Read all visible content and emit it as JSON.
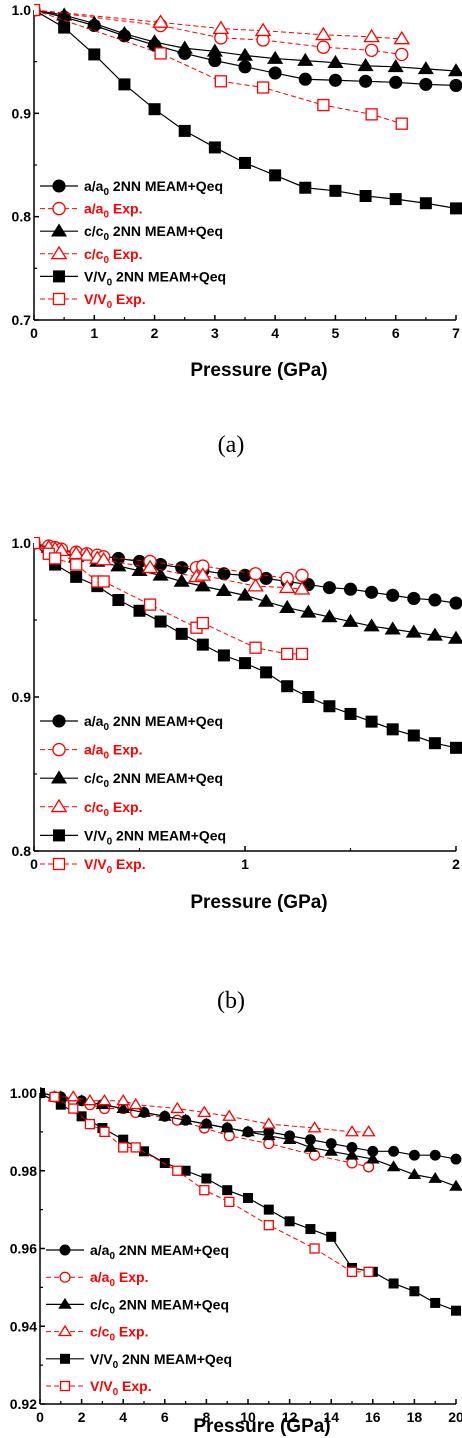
{
  "colors": {
    "sim": "#000000",
    "exp": "#ff0000"
  },
  "panel_captions": [
    "(a)",
    "(b)"
  ],
  "chart_data": [
    {
      "type": "line",
      "xlabel": "Pressure (GPa)",
      "ylabel": "",
      "xlim": [
        0,
        7
      ],
      "ylim": [
        0.7,
        1.0
      ],
      "xticks": [
        "0",
        "1",
        "2",
        "3",
        "4",
        "5",
        "6",
        "7"
      ],
      "yticks": [
        "0.7",
        "0.8",
        "0.9",
        "1.0"
      ],
      "legend_position": "bottom-left",
      "series": [
        {
          "name": "a/a0 2NN MEAM+Qeq",
          "label_main": "a/a",
          "label_sub": "0",
          "label_rest": " 2NN MEAM+Qeq",
          "kind": "sim",
          "marker": "circle",
          "x": [
            0,
            0.5,
            1,
            1.5,
            2,
            2.5,
            3,
            3.5,
            4,
            4.5,
            5,
            5.5,
            6,
            6.5,
            7
          ],
          "y": [
            1.0,
            0.993,
            0.985,
            0.975,
            0.966,
            0.958,
            0.951,
            0.945,
            0.939,
            0.933,
            0.932,
            0.931,
            0.93,
            0.928,
            0.927
          ]
        },
        {
          "name": "a/a0 Exp.",
          "label_main": "a/a",
          "label_sub": "0",
          "label_rest": " Exp.",
          "kind": "exp",
          "marker": "circle",
          "x": [
            0,
            2.1,
            3.1,
            3.8,
            4.8,
            5.6,
            6.1
          ],
          "y": [
            1.0,
            0.985,
            0.973,
            0.971,
            0.964,
            0.961,
            0.957
          ]
        },
        {
          "name": "c/c0 2NN MEAM+Qeq",
          "label_main": "c/c",
          "label_sub": "0",
          "label_rest": " 2NN MEAM+Qeq",
          "kind": "sim",
          "marker": "triangle",
          "x": [
            0,
            0.5,
            1,
            1.5,
            2,
            2.5,
            3,
            3.5,
            4,
            4.5,
            5,
            5.5,
            6,
            6.5,
            7
          ],
          "y": [
            1.0,
            0.995,
            0.987,
            0.977,
            0.969,
            0.963,
            0.96,
            0.956,
            0.953,
            0.951,
            0.949,
            0.946,
            0.945,
            0.943,
            0.941
          ]
        },
        {
          "name": "c/c0 Exp.",
          "label_main": "c/c",
          "label_sub": "0",
          "label_rest": " Exp.",
          "kind": "exp",
          "marker": "triangle",
          "x": [
            0,
            2.1,
            3.1,
            3.8,
            4.8,
            5.6,
            6.1
          ],
          "y": [
            1.0,
            0.988,
            0.982,
            0.98,
            0.976,
            0.974,
            0.972
          ]
        },
        {
          "name": "V/V0 2NN MEAM+Qeq",
          "label_main": "V/V",
          "label_sub": "0",
          "label_rest": " 2NN MEAM+Qeq",
          "kind": "sim",
          "marker": "square",
          "x": [
            0,
            0.5,
            1,
            1.5,
            2,
            2.5,
            3,
            3.5,
            4,
            4.5,
            5,
            5.5,
            6,
            6.5,
            7
          ],
          "y": [
            1.0,
            0.983,
            0.957,
            0.928,
            0.904,
            0.883,
            0.867,
            0.852,
            0.84,
            0.828,
            0.825,
            0.82,
            0.817,
            0.813,
            0.808
          ]
        },
        {
          "name": "V/V0 Exp.",
          "label_main": "V/V",
          "label_sub": "0",
          "label_rest": " Exp.",
          "kind": "exp",
          "marker": "square",
          "x": [
            0,
            2.1,
            3.1,
            3.8,
            4.8,
            5.6,
            6.1
          ],
          "y": [
            1.0,
            0.958,
            0.931,
            0.925,
            0.908,
            0.899,
            0.89
          ]
        }
      ]
    },
    {
      "type": "line",
      "xlabel": "Pressure (GPa)",
      "ylabel": "",
      "xlim": [
        0,
        2
      ],
      "ylim": [
        0.8,
        1.0
      ],
      "xticks": [
        "0",
        "1",
        "2"
      ],
      "yticks": [
        "0.8",
        "0.9",
        "1.0"
      ],
      "legend_position": "bottom-left",
      "series": [
        {
          "name": "a/a0 2NN MEAM+Qeq",
          "label_main": "a/a",
          "label_sub": "0",
          "label_rest": " 2NN MEAM+Qeq",
          "kind": "sim",
          "marker": "circle",
          "x": [
            0,
            0.1,
            0.2,
            0.3,
            0.4,
            0.5,
            0.6,
            0.7,
            0.8,
            0.9,
            1.0,
            1.1,
            1.2,
            1.3,
            1.4,
            1.5,
            1.6,
            1.7,
            1.8,
            1.9,
            2.0
          ],
          "y": [
            1.0,
            0.996,
            0.994,
            0.992,
            0.99,
            0.988,
            0.986,
            0.984,
            0.982,
            0.98,
            0.979,
            0.977,
            0.975,
            0.973,
            0.971,
            0.97,
            0.968,
            0.966,
            0.964,
            0.963,
            0.961
          ]
        },
        {
          "name": "a/a0 Exp.",
          "label_main": "a/a",
          "label_sub": "0",
          "label_rest": " Exp.",
          "kind": "exp",
          "marker": "circle",
          "x": [
            0,
            0.07,
            0.1,
            0.13,
            0.2,
            0.25,
            0.3,
            0.33,
            0.55,
            0.77,
            0.8,
            1.05,
            1.2,
            1.27
          ],
          "y": [
            1.0,
            0.998,
            0.997,
            0.996,
            0.994,
            0.993,
            0.992,
            0.991,
            0.988,
            0.984,
            0.985,
            0.98,
            0.977,
            0.979
          ]
        },
        {
          "name": "c/c0 2NN MEAM+Qeq",
          "label_main": "c/c",
          "label_sub": "0",
          "label_rest": " 2NN MEAM+Qeq",
          "kind": "sim",
          "marker": "triangle",
          "x": [
            0,
            0.1,
            0.2,
            0.3,
            0.4,
            0.5,
            0.6,
            0.7,
            0.8,
            0.9,
            1.0,
            1.1,
            1.2,
            1.3,
            1.4,
            1.5,
            1.6,
            1.7,
            1.8,
            1.9,
            2.0
          ],
          "y": [
            1.0,
            0.995,
            0.991,
            0.988,
            0.985,
            0.982,
            0.979,
            0.975,
            0.972,
            0.969,
            0.966,
            0.962,
            0.958,
            0.955,
            0.952,
            0.949,
            0.946,
            0.944,
            0.942,
            0.94,
            0.938
          ]
        },
        {
          "name": "c/c0 Exp.",
          "label_main": "c/c",
          "label_sub": "0",
          "label_rest": " Exp.",
          "kind": "exp",
          "marker": "triangle",
          "x": [
            0,
            0.07,
            0.1,
            0.13,
            0.2,
            0.25,
            0.3,
            0.33,
            0.55,
            0.77,
            0.8,
            1.05,
            1.2,
            1.27
          ],
          "y": [
            1.0,
            0.997,
            0.996,
            0.995,
            0.993,
            0.992,
            0.99,
            0.989,
            0.984,
            0.978,
            0.979,
            0.972,
            0.971,
            0.97
          ]
        },
        {
          "name": "V/V0 2NN MEAM+Qeq",
          "label_main": "V/V",
          "label_sub": "0",
          "label_rest": " 2NN MEAM+Qeq",
          "kind": "sim",
          "marker": "square",
          "x": [
            0,
            0.1,
            0.2,
            0.3,
            0.4,
            0.5,
            0.6,
            0.7,
            0.8,
            0.9,
            1.0,
            1.1,
            1.2,
            1.3,
            1.4,
            1.5,
            1.6,
            1.7,
            1.8,
            1.9,
            2.0
          ],
          "y": [
            1.0,
            0.986,
            0.978,
            0.972,
            0.963,
            0.956,
            0.949,
            0.941,
            0.934,
            0.927,
            0.922,
            0.916,
            0.907,
            0.9,
            0.894,
            0.889,
            0.884,
            0.879,
            0.875,
            0.87,
            0.867
          ]
        },
        {
          "name": "V/V0 Exp.",
          "label_main": "V/V",
          "label_sub": "0",
          "label_rest": " Exp.",
          "kind": "exp",
          "marker": "square",
          "x": [
            0,
            0.07,
            0.1,
            0.2,
            0.3,
            0.33,
            0.55,
            0.77,
            0.8,
            1.05,
            1.2,
            1.27
          ],
          "y": [
            1.0,
            0.993,
            0.99,
            0.986,
            0.975,
            0.975,
            0.96,
            0.945,
            0.948,
            0.932,
            0.928,
            0.928
          ]
        }
      ]
    },
    {
      "type": "line",
      "xlabel": "Pressure (GPa)",
      "ylabel": "",
      "xlim": [
        0,
        20
      ],
      "ylim": [
        0.92,
        1.0
      ],
      "xticks": [
        "0",
        "2",
        "4",
        "6",
        "8",
        "10",
        "12",
        "14",
        "16",
        "18",
        "20"
      ],
      "yticks": [
        "0.92",
        "0.94",
        "0.96",
        "0.98",
        "1.00"
      ],
      "legend_position": "bottom-left",
      "series": [
        {
          "name": "a/a0 2NN MEAM+Qeq",
          "label_main": "a/a",
          "label_sub": "0",
          "label_rest": " 2NN MEAM+Qeq",
          "kind": "sim",
          "marker": "circle",
          "x": [
            0,
            1,
            2,
            3,
            4,
            5,
            6,
            7,
            8,
            9,
            10,
            11,
            12,
            13,
            14,
            15,
            16,
            17,
            18,
            19,
            20
          ],
          "y": [
            1.0,
            0.999,
            0.998,
            0.997,
            0.996,
            0.995,
            0.994,
            0.993,
            0.992,
            0.991,
            0.99,
            0.99,
            0.989,
            0.988,
            0.987,
            0.986,
            0.985,
            0.985,
            0.984,
            0.984,
            0.983
          ]
        },
        {
          "name": "a/a0 Exp.",
          "label_main": "a/a",
          "label_sub": "0",
          "label_rest": " Exp.",
          "kind": "exp",
          "marker": "circle",
          "x": [
            0.7,
            1.6,
            2.4,
            3.1,
            4.0,
            4.6,
            6.6,
            7.9,
            9.1,
            11.0,
            13.2,
            15.0,
            15.8
          ],
          "y": [
            0.999,
            0.998,
            0.997,
            0.996,
            0.996,
            0.995,
            0.993,
            0.991,
            0.989,
            0.987,
            0.984,
            0.982,
            0.981
          ]
        },
        {
          "name": "c/c0 2NN MEAM+Qeq",
          "label_main": "c/c",
          "label_sub": "0",
          "label_rest": " 2NN MEAM+Qeq",
          "kind": "sim",
          "marker": "triangle",
          "x": [
            0,
            1,
            2,
            3,
            4,
            5,
            6,
            7,
            8,
            9,
            10,
            11,
            12,
            13,
            14,
            15,
            16,
            17,
            18,
            19,
            20
          ],
          "y": [
            1.0,
            0.999,
            0.998,
            0.997,
            0.996,
            0.995,
            0.994,
            0.993,
            0.992,
            0.991,
            0.99,
            0.989,
            0.988,
            0.986,
            0.985,
            0.984,
            0.983,
            0.981,
            0.979,
            0.978,
            0.976
          ]
        },
        {
          "name": "c/c0 Exp.",
          "label_main": "c/c",
          "label_sub": "0",
          "label_rest": " Exp.",
          "kind": "exp",
          "marker": "triangle",
          "x": [
            0.7,
            1.6,
            2.4,
            3.1,
            4.0,
            4.6,
            6.6,
            7.9,
            9.1,
            11.0,
            13.2,
            15.0,
            15.8
          ],
          "y": [
            0.999,
            0.999,
            0.998,
            0.998,
            0.998,
            0.997,
            0.996,
            0.995,
            0.994,
            0.992,
            0.991,
            0.99,
            0.99
          ]
        },
        {
          "name": "V/V0 2NN MEAM+Qeq",
          "label_main": "V/V",
          "label_sub": "0",
          "label_rest": " 2NN MEAM+Qeq",
          "kind": "sim",
          "marker": "square",
          "x": [
            0,
            1,
            2,
            3,
            4,
            5,
            6,
            7,
            8,
            9,
            10,
            11,
            12,
            13,
            14,
            15,
            16,
            17,
            18,
            19,
            20
          ],
          "y": [
            1.0,
            0.997,
            0.994,
            0.991,
            0.988,
            0.985,
            0.982,
            0.98,
            0.978,
            0.975,
            0.973,
            0.97,
            0.967,
            0.965,
            0.963,
            0.955,
            0.954,
            0.951,
            0.949,
            0.946,
            0.944
          ]
        },
        {
          "name": "V/V0 Exp.",
          "label_main": "V/V",
          "label_sub": "0",
          "label_rest": " Exp.",
          "kind": "exp",
          "marker": "square",
          "x": [
            0.7,
            1.6,
            2.4,
            3.1,
            4.0,
            4.6,
            6.6,
            7.9,
            9.1,
            11.0,
            13.2,
            15.0,
            15.8
          ],
          "y": [
            0.999,
            0.996,
            0.992,
            0.99,
            0.986,
            0.986,
            0.98,
            0.975,
            0.972,
            0.966,
            0.96,
            0.954,
            0.954
          ]
        }
      ]
    }
  ]
}
